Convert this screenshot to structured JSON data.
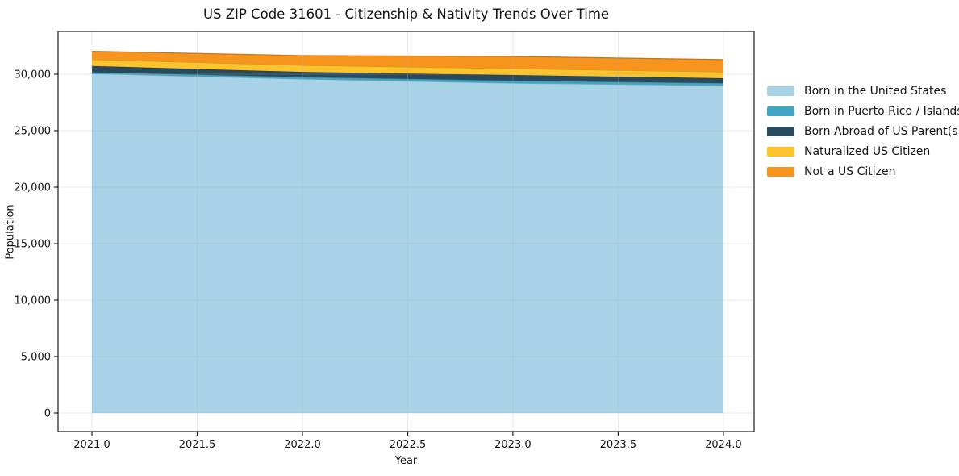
{
  "title": "US ZIP Code 31601 - Citizenship & Nativity Trends Over Time",
  "chart_data": {
    "type": "area",
    "stacked": true,
    "title": "US ZIP Code 31601 - Citizenship & Nativity Trends Over Time",
    "xlabel": "Year",
    "ylabel": "Population",
    "x": [
      2021,
      2022,
      2023,
      2024
    ],
    "series": [
      {
        "name": "Born in the United States",
        "color": "#a8d2e6",
        "values": [
          30050,
          29570,
          29210,
          29000
        ]
      },
      {
        "name": "Born in Puerto Rico / Islands",
        "color": "#43a5c4",
        "values": [
          130,
          180,
          220,
          210
        ]
      },
      {
        "name": "Born Abroad of US Parent(s)",
        "color": "#294a5d",
        "values": [
          550,
          460,
          500,
          430
        ]
      },
      {
        "name": "Naturalized US Citizen",
        "color": "#fcc32d",
        "values": [
          580,
          580,
          570,
          570
        ]
      },
      {
        "name": "Not a US Citizen",
        "color": "#f7941e",
        "values": [
          720,
          850,
          1070,
          1080
        ]
      }
    ],
    "x_ticks": [
      2021.0,
      2021.5,
      2022.0,
      2022.5,
      2023.0,
      2023.5,
      2024.0
    ],
    "x_tick_labels": [
      "2021.0",
      "2021.5",
      "2022.0",
      "2022.5",
      "2023.0",
      "2023.5",
      "2024.0"
    ],
    "y_ticks": [
      0,
      5000,
      10000,
      15000,
      20000,
      25000,
      30000
    ],
    "y_tick_labels": [
      "0",
      "5,000",
      "10,000",
      "15,000",
      "20,000",
      "25,000",
      "30,000"
    ],
    "xlim": [
      2020.839,
      2024.146
    ],
    "ylim": [
      -1643,
      33786
    ],
    "grid": true,
    "legend_position": "right of plot, upper"
  }
}
